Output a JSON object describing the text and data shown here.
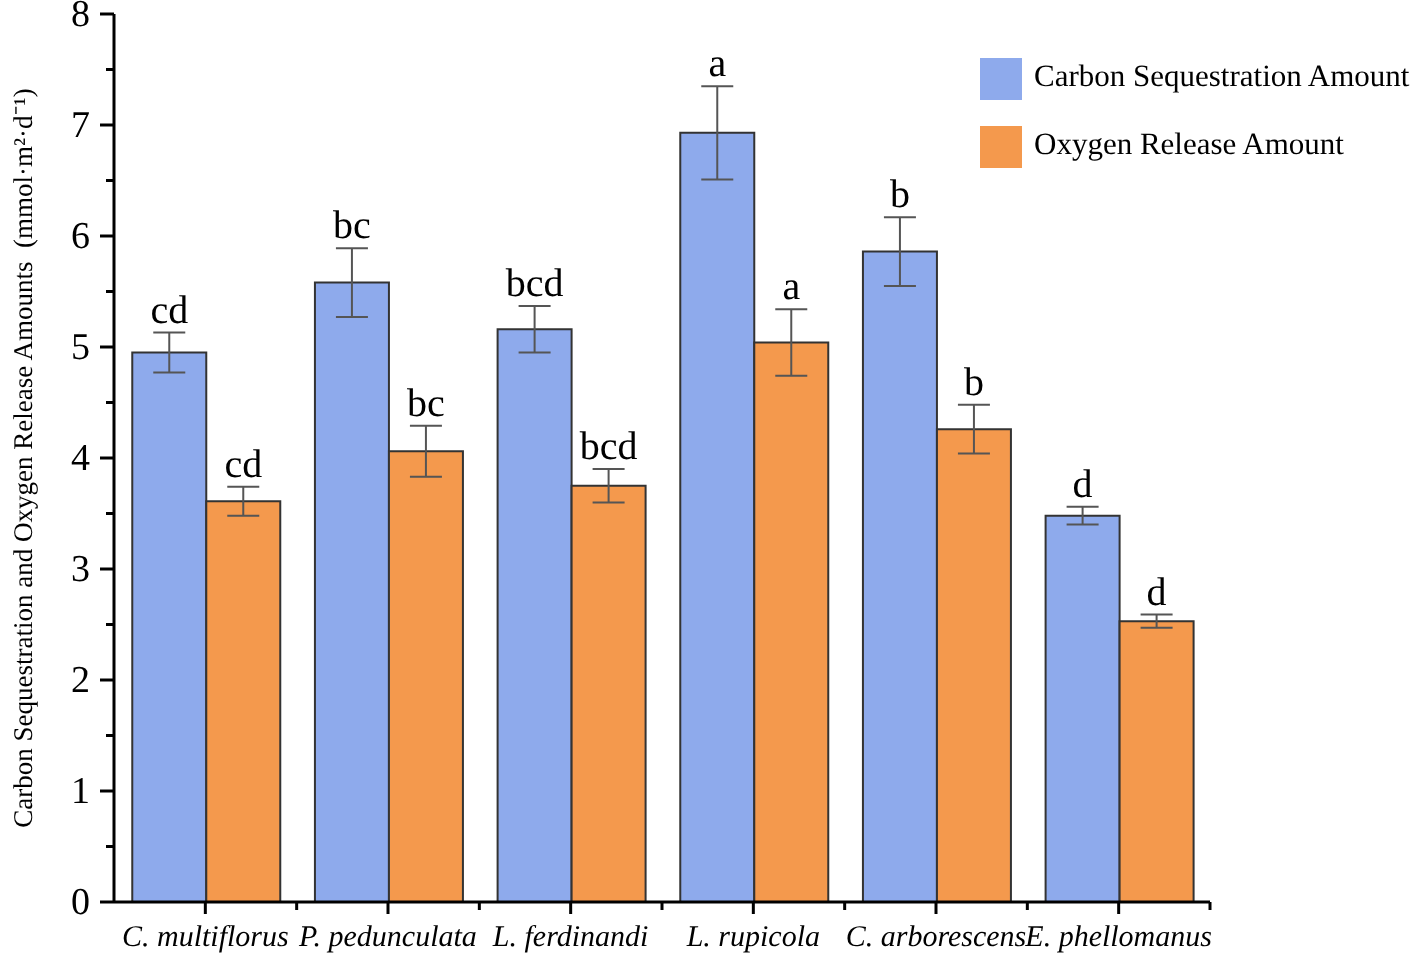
{
  "chart_data": {
    "type": "bar",
    "ylabel": "Carbon Sequestration and Oxygen Release Amounts  (mmol·m²·d⁻¹)",
    "categories": [
      "C. multiflorus",
      "P. pedunculata",
      "L. ferdinandi",
      "L. rupicola",
      "C. arborescens",
      "E. phellomanus"
    ],
    "series": [
      {
        "name": "Carbon Sequestration Amount",
        "color": "#8eaaec",
        "values": [
          4.95,
          5.58,
          5.16,
          6.93,
          5.86,
          3.48
        ],
        "errors": [
          0.18,
          0.31,
          0.21,
          0.42,
          0.31,
          0.08
        ],
        "value_labels": [
          "cd",
          "bc",
          "bcd",
          "a",
          "b",
          "d"
        ]
      },
      {
        "name": "Oxygen Release Amount",
        "color": "#f4994d",
        "values": [
          3.61,
          4.06,
          3.75,
          5.04,
          4.26,
          2.53
        ],
        "errors": [
          0.13,
          0.23,
          0.15,
          0.3,
          0.22,
          0.06
        ],
        "value_labels": [
          "cd",
          "bc",
          "bcd",
          "a",
          "b",
          "d"
        ]
      }
    ],
    "ylim": [
      0,
      8
    ],
    "yticks": [
      0,
      {
        "value": 0.5,
        "label": null
      },
      1,
      {
        "value": 1.5,
        "label": null
      },
      2,
      {
        "value": 2.5,
        "label": null
      },
      3,
      {
        "value": 3.5,
        "label": null
      },
      4,
      {
        "value": 4.5,
        "label": null
      },
      5,
      {
        "value": 5.5,
        "label": null
      },
      6,
      {
        "value": 6.5,
        "label": null
      },
      7,
      {
        "value": 7.5,
        "label": null
      },
      8
    ],
    "grid": false,
    "legend": "top right"
  }
}
